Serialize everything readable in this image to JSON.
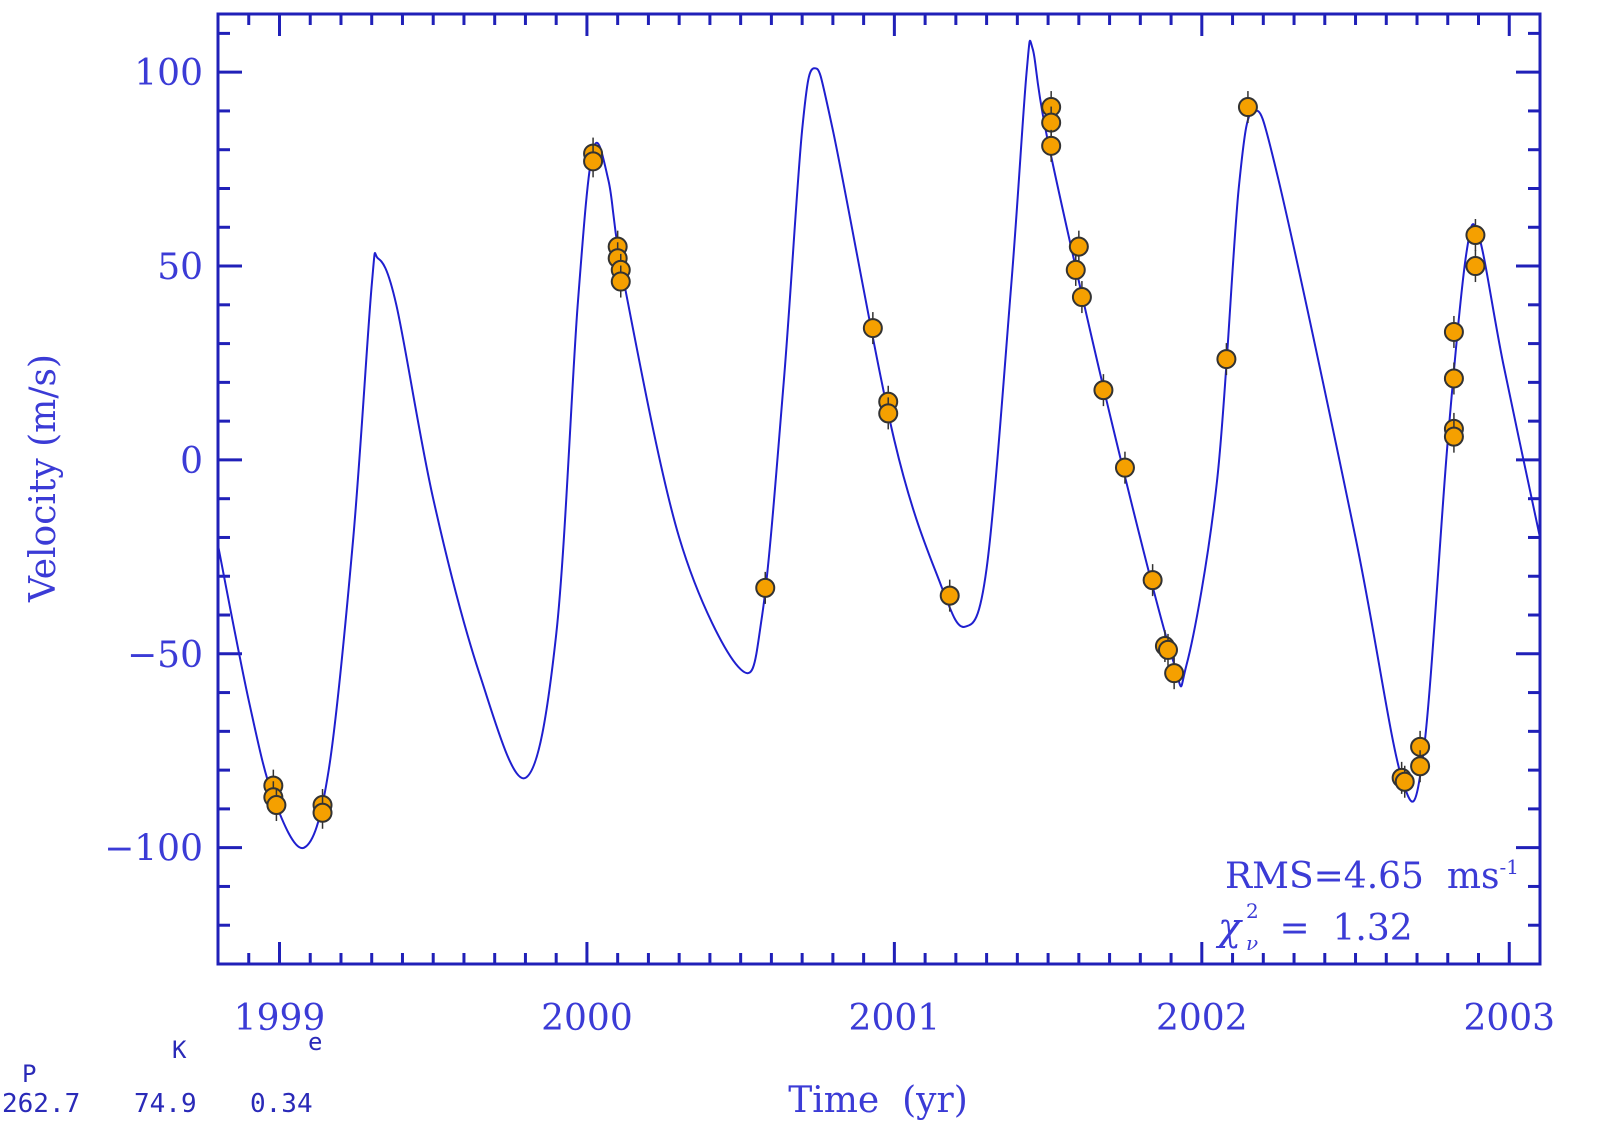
{
  "chart_data": {
    "type": "scatter",
    "title": "",
    "xlabel": "Time  (yr)",
    "ylabel": "Velocity (m/s)",
    "xlim": [
      1998.8,
      2003.1
    ],
    "ylim": [
      -130,
      115
    ],
    "x_ticks": [
      "1999",
      "2000",
      "2001",
      "2002",
      "2003"
    ],
    "y_ticks": [
      "100",
      "50",
      "0",
      "−50",
      "−100"
    ],
    "colors": {
      "axis": "#2020b8",
      "curve": "#1f1fcf",
      "point_fill": "#f5a000",
      "point_edge": "#333333",
      "text": "#3b3bd6"
    },
    "annotation": {
      "rms_text": "RMS=4.65  ms",
      "rms_superscript": "-1",
      "chi_symbol": "χ",
      "chi_sup": "2",
      "chi_sub": "ν",
      "chi_text": " =  1.32"
    },
    "parameters": {
      "labels": [
        "P",
        "K",
        "e"
      ],
      "values": [
        "262.7",
        "74.9",
        "0.34"
      ]
    },
    "fit_curve": [
      [
        1998.8,
        -22
      ],
      [
        1998.9,
        -62
      ],
      [
        1998.98,
        -87
      ],
      [
        1999.08,
        -100
      ],
      [
        1999.16,
        -80
      ],
      [
        1999.24,
        -20
      ],
      [
        1999.3,
        45
      ],
      [
        1999.32,
        52
      ],
      [
        1999.38,
        40
      ],
      [
        1999.5,
        -10
      ],
      [
        1999.65,
        -55
      ],
      [
        1999.8,
        -82
      ],
      [
        1999.9,
        -45
      ],
      [
        1999.97,
        40
      ],
      [
        2000.02,
        80
      ],
      [
        2000.07,
        72
      ],
      [
        2000.12,
        46
      ],
      [
        2000.3,
        -20
      ],
      [
        2000.5,
        -54
      ],
      [
        2000.57,
        -40
      ],
      [
        2000.64,
        20
      ],
      [
        2000.7,
        85
      ],
      [
        2000.74,
        101
      ],
      [
        2000.8,
        85
      ],
      [
        2001.0,
        5
      ],
      [
        2001.15,
        -32
      ],
      [
        2001.23,
        -43
      ],
      [
        2001.3,
        -28
      ],
      [
        2001.38,
        45
      ],
      [
        2001.43,
        100
      ],
      [
        2001.45,
        106
      ],
      [
        2001.5,
        82
      ],
      [
        2001.7,
        12
      ],
      [
        2001.9,
        -50
      ],
      [
        2001.95,
        -53
      ],
      [
        2002.05,
        -5
      ],
      [
        2002.12,
        70
      ],
      [
        2002.17,
        90
      ],
      [
        2002.25,
        72
      ],
      [
        2002.5,
        -20
      ],
      [
        2002.65,
        -82
      ],
      [
        2002.72,
        -76
      ],
      [
        2002.8,
        5
      ],
      [
        2002.86,
        53
      ],
      [
        2002.9,
        58
      ],
      [
        2002.98,
        25
      ],
      [
        2003.1,
        -20
      ]
    ],
    "points": [
      [
        1998.98,
        -84
      ],
      [
        1998.98,
        -87
      ],
      [
        1998.99,
        -89
      ],
      [
        1999.14,
        -89
      ],
      [
        1999.14,
        -91
      ],
      [
        2000.02,
        79
      ],
      [
        2000.02,
        77
      ],
      [
        2000.1,
        55
      ],
      [
        2000.1,
        52
      ],
      [
        2000.11,
        49
      ],
      [
        2000.11,
        46
      ],
      [
        2000.58,
        -33
      ],
      [
        2000.93,
        34
      ],
      [
        2000.98,
        15
      ],
      [
        2000.98,
        12
      ],
      [
        2001.18,
        -35
      ],
      [
        2001.51,
        91
      ],
      [
        2001.51,
        87
      ],
      [
        2001.51,
        81
      ],
      [
        2001.6,
        55
      ],
      [
        2001.59,
        49
      ],
      [
        2001.61,
        42
      ],
      [
        2001.68,
        18
      ],
      [
        2001.75,
        -2
      ],
      [
        2001.84,
        -31
      ],
      [
        2001.88,
        -48
      ],
      [
        2001.89,
        -49
      ],
      [
        2001.91,
        -55
      ],
      [
        2002.08,
        26
      ],
      [
        2002.15,
        91
      ],
      [
        2002.65,
        -82
      ],
      [
        2002.66,
        -83
      ],
      [
        2002.71,
        -74
      ],
      [
        2002.71,
        -79
      ],
      [
        2002.82,
        33
      ],
      [
        2002.82,
        21
      ],
      [
        2002.82,
        8
      ],
      [
        2002.82,
        6
      ],
      [
        2002.89,
        58
      ],
      [
        2002.89,
        50
      ]
    ]
  }
}
